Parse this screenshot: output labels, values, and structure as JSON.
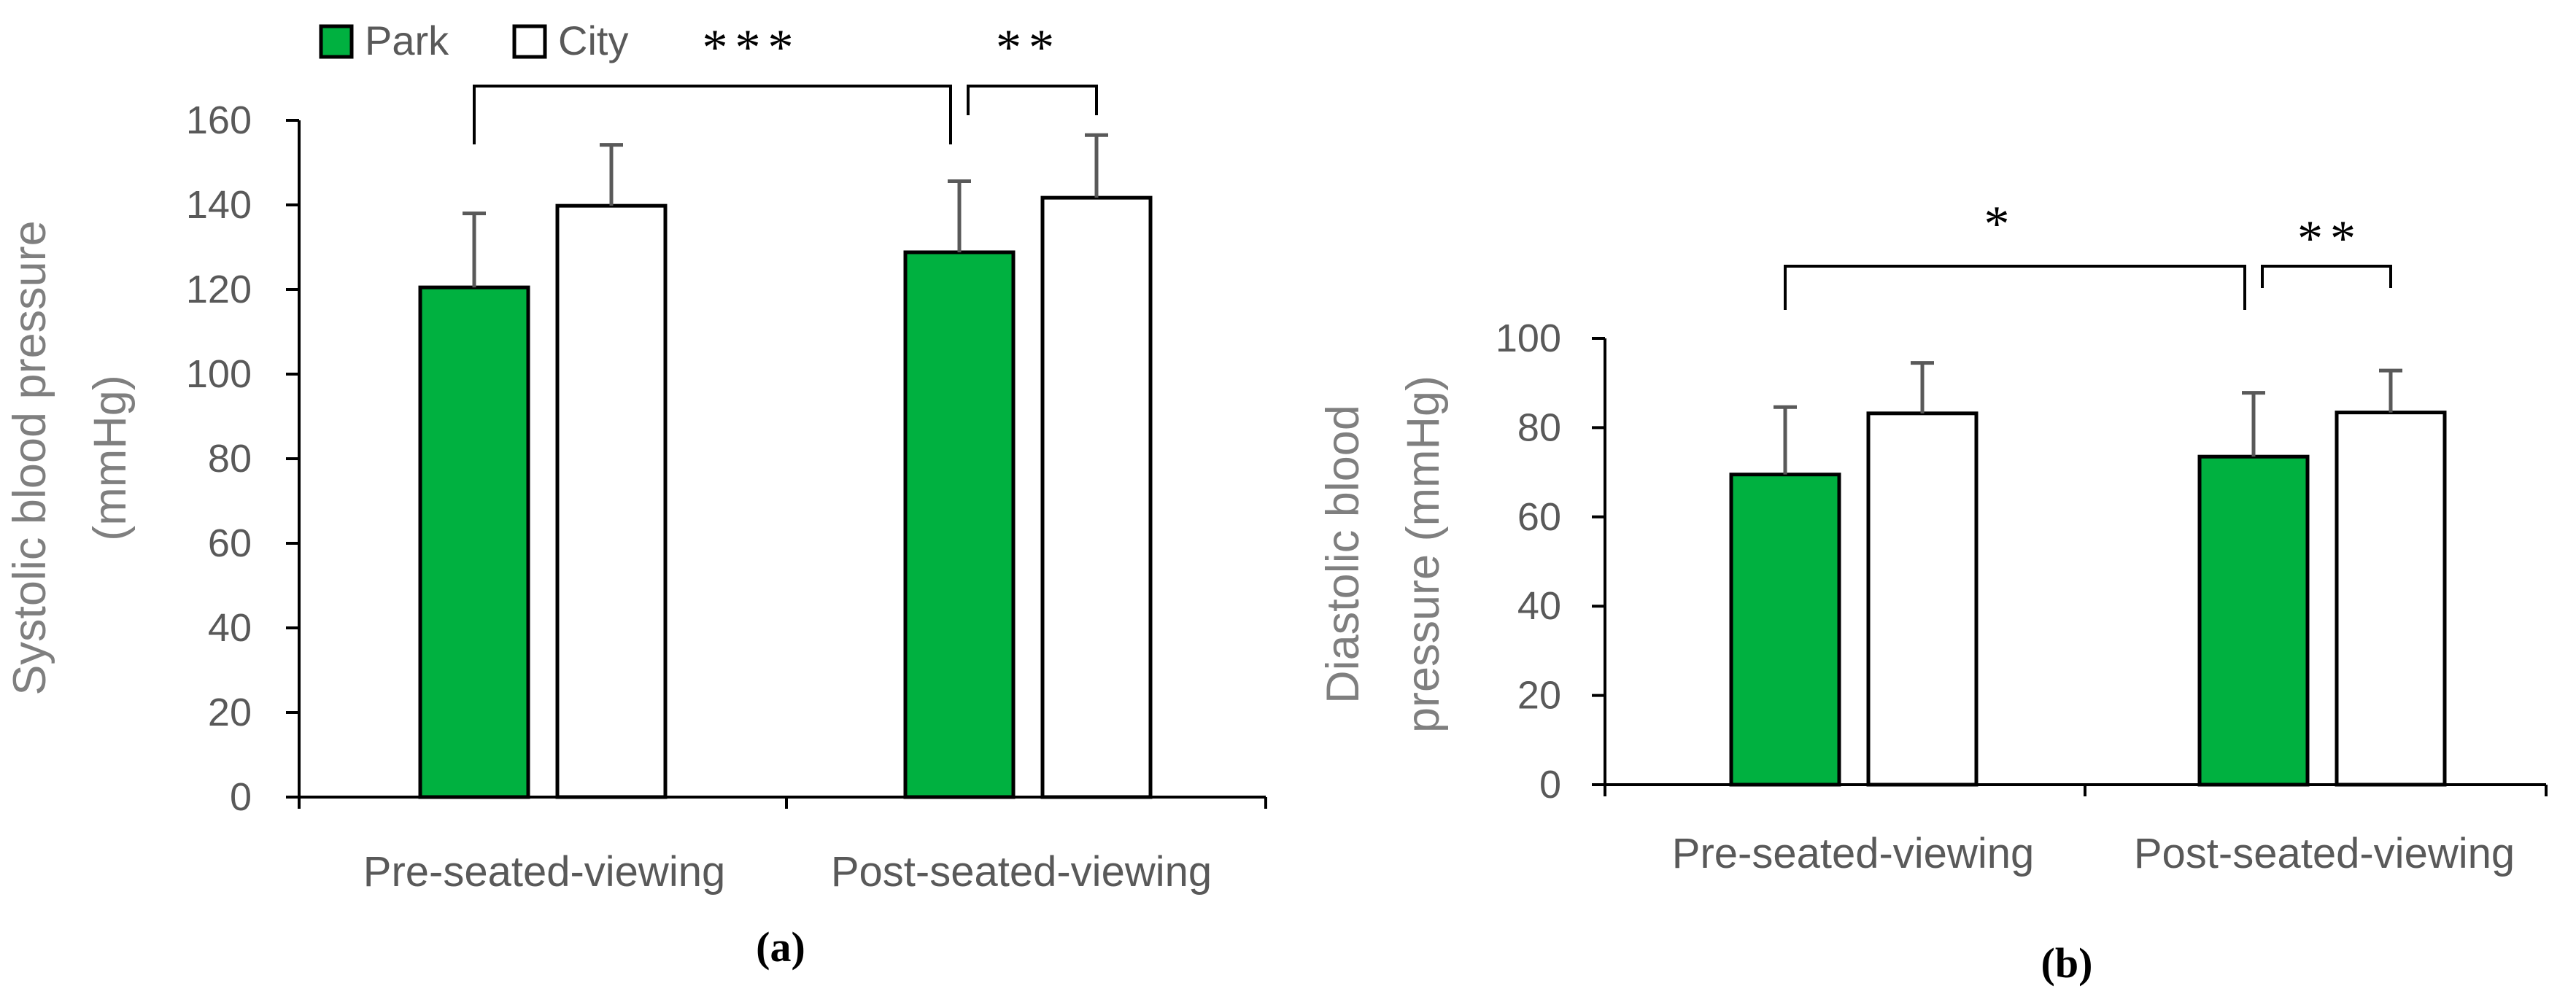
{
  "colors": {
    "park": "#00b140",
    "city": "#ffffff",
    "bar_edge": "#000000",
    "error_bar": "#595959",
    "axis": "#000000"
  },
  "legend": {
    "park": "Park",
    "city": "City"
  },
  "chart_data": [
    {
      "panel": "(a)",
      "type": "bar",
      "ylabel": "Systolic blood pressure (mmHg)",
      "categories": [
        "Pre-seated-viewing",
        "Post-seated-viewing"
      ],
      "ylim": [
        0,
        160
      ],
      "yticks": [
        0,
        20,
        40,
        60,
        80,
        100,
        120,
        140,
        160
      ],
      "series": [
        {
          "name": "Park",
          "values": [
            120.5,
            128.8
          ],
          "errors": [
            17.5,
            16.8
          ]
        },
        {
          "name": "City",
          "values": [
            139.8,
            141.7
          ],
          "errors": [
            14.4,
            14.8
          ]
        }
      ],
      "significance": [
        {
          "label": "***",
          "from": [
            0,
            0
          ],
          "to": [
            1,
            0
          ]
        },
        {
          "label": "**",
          "from": [
            1,
            0
          ],
          "to": [
            1,
            1
          ]
        }
      ]
    },
    {
      "panel": "(b)",
      "type": "bar",
      "ylabel": "Diastolic blood pressure (mmHg)",
      "categories": [
        "Pre-seated-viewing",
        "Post-seated-viewing"
      ],
      "ylim": [
        0,
        100
      ],
      "yticks": [
        0,
        20,
        40,
        60,
        80,
        100
      ],
      "series": [
        {
          "name": "Park",
          "values": [
            69.5,
            73.5
          ],
          "errors": [
            15.1,
            14.3
          ]
        },
        {
          "name": "City",
          "values": [
            83.2,
            83.4
          ],
          "errors": [
            11.3,
            9.4
          ]
        }
      ],
      "significance": [
        {
          "label": "*",
          "from": [
            0,
            0
          ],
          "to": [
            1,
            0
          ]
        },
        {
          "label": "**",
          "from": [
            1,
            0
          ],
          "to": [
            1,
            1
          ]
        }
      ]
    }
  ]
}
